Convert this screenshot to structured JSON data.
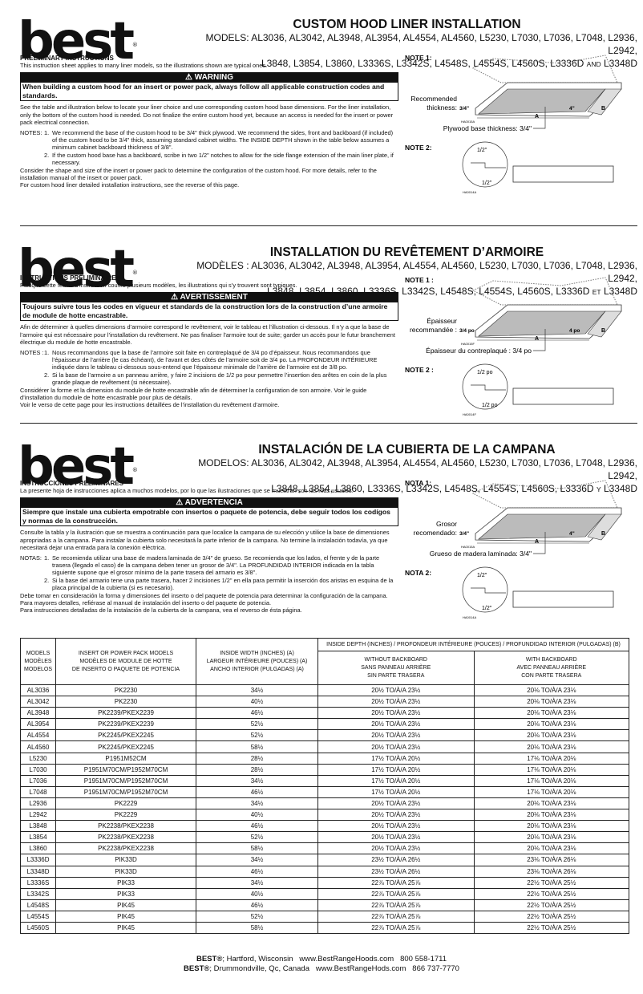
{
  "brand": {
    "logo_text": "best",
    "registered": "®"
  },
  "sections": [
    {
      "lang": "en",
      "title": "CUSTOM HOOD LINER INSTALLATION",
      "models_line1": "MODELS: AL3036, AL3042, AL3948, AL3954, AL4554, AL4560, L5230, L7030, L7036, L7048, L2936, L2942,",
      "models_line2": "L3848, L3854, L3860, L3336S, L3342S, L4548S, L4554S, L4560S, L3336D",
      "conj": "AND",
      "models_last": "L3348D",
      "prelim_heading": "PRELIMINARY INSTRUCTIONS",
      "prelim_text": "This instruction sheet applies to many liner models, so the illustrations shown are typical ones.",
      "warning_label": "WARNING",
      "warning_text": "When building a custom hood for an insert or power pack, always follow all applicable construction codes and standards.",
      "intro": "See the table and illustration below to locate your liner choice and use corresponding custom hood base dimensions. For the liner installation, only the bottom of the custom hood is needed. Do not finalize the entire custom hood yet, because an access is needed for the insert or power pack electrical connection.",
      "notes_label": "NOTES:",
      "notes": [
        "We recommend the base of the custom hood to be 3/4\" thick plywood. We recommend the sides, front and backboard (if included) of the custom hood to be 3/4\" thick, assuming standard cabinet widths. The INSIDE DEPTH shown in the table below assumes a minimum cabinet backboard thickness of 3/8\".",
        "If the custom hood base has a backboard, scribe in two 1/2\" notches to allow for the side flange extension of the main liner plate, if necessary."
      ],
      "closing": [
        "Consider the shape and size of the insert or power pack to determine the configuration of the custom hood. For more details, refer to the installation manual of the insert or power pack.",
        "For custom hood liner detailed installation instructions, see the reverse of this page."
      ],
      "note1_label": "NOTE 1:",
      "note2_label": "NOTE 2:",
      "rec_thickness_1": "Recommended",
      "rec_thickness_2": "thickness:",
      "thickness_value": "3/4\"",
      "dim_a": "A",
      "dim_b": "B",
      "height_value": "4\"",
      "plywood_label": "Plywood base thickness: 3/4\"",
      "fig1_code": "HA0015A",
      "notch_top": "1/2\"",
      "notch_bottom": "1/2\"",
      "fig2_code": "HA0014A"
    },
    {
      "lang": "fr",
      "title": "INSTALLATION DU REVÊTEMENT D’ARMOIRE",
      "models_line1": "MODÈLES : AL3036, AL3042, AL3948, AL3954, AL4554, AL4560, L5230, L7030, L7036, L7048, L2936, L2942,",
      "models_line2": "L3848, L3854, L3860, L3336S, L3342S, L4548S, L4554S, L4560S, L3336D",
      "conj": "ET",
      "models_last": "L3348D",
      "prelim_heading": "INSTRUCTIONS PRÉLIMINAIRES",
      "prelim_text": "Puisque cette feuille d’instruction couvre plusieurs modèles, les illustrations qui s’y trouvent sont typiques.",
      "warning_label": "AVERTISSEMENT",
      "warning_text": "Toujours suivre tous les codes en vigueur et standards de la construction lors de la construction d’une armoire de module de hotte encastrable.",
      "intro": "Afin de déterminer à quelles dimensions d’armoire correspond le revêtement, voir le tableau et l’illustration ci-dessous. Il n’y a que la base de l’armoire qui est nécessaire pour l’installation du revêtement. Ne pas finaliser l’armoire tout de suite; garder un accès pour le futur branchement électrique du module de hotte encastrable.",
      "notes_label": "NOTES :",
      "notes": [
        "Nous recommandons que la base de l’armoire soit faite en contreplaqué de 3/4 po d’épaisseur. Nous recommandons que l’épaisseur de l’arrière (le cas échéant), de l’avant et des côtés de l’armoire soit de 3/4 po. La PROFONDEUR INTÉRIEURE indiquée dans le tableau ci-dessous sous-entend que l’épaisseur minimale de l’arrière de l’armoire est de 3/8 po.",
        "Si la base de l’armoire a un panneau arrière, y faire 2 incisions de 1/2 po pour permettre l’insertion des arêtes en coin de la plus grande plaque de revêtement (si nécessaire)."
      ],
      "closing": [
        "Considérer la forme et la dimension du module de hotte encastrable afin de déterminer la configuration de son armoire. Voir le guide d’installation du module de hotte encastrable pour plus de détails.",
        "Voir le verso de cette page pour les instructions détaillées de l’installation du revêtement d’armoire."
      ],
      "note1_label": "NOTE 1 :",
      "note2_label": "NOTE 2 :",
      "rec_thickness_1": "Épaisseur",
      "rec_thickness_2": "recommandée :",
      "thickness_value": "3/4 po",
      "dim_a": "A",
      "dim_b": "B",
      "height_value": "4 po",
      "plywood_label": "Épaisseur du contreplaqué : 3/4 po",
      "fig1_code": "HA0015F",
      "notch_top": "1/2 po",
      "notch_bottom": "1/2 po",
      "fig2_code": "HA0014F"
    },
    {
      "lang": "es",
      "title": "INSTALACIÓN DE LA CUBIERTA DE LA CAMPANA",
      "models_line1": "MODELOS: AL3036, AL3042, AL3948, AL3954, AL4554, AL4560, L5230, L7030, L7036, L7048, L2936, L2942,",
      "models_line2": "L3848, L3854, L3860, L3336S, L3342S, L4548S, L4554S, L4560S, L3336D",
      "conj": "Y",
      "models_last": "L3348D",
      "prelim_heading": "INSTRUCCIONES PRELIMINARES",
      "prelim_text": "La presente hoja de instrucciones aplica a muchos modelos, por lo que las ilustraciones que se muestran son las más usuales.",
      "warning_label": "ADVERTENCIA",
      "warning_text": "Siempre que instale una cubierta empotrable con insertos o paquete de potencia, debe seguir todos los codígos y normas de la construcción.",
      "intro": "Consulte la tabla y la ilustración que se muestra a continuación para que localice la campana de su elección y utilice la base de dimensiones apropriadas a la campana. Para instalar la cubierta solo necesitará la parte inferior de la campana. No termine la instalación todavía, ya que necesitará dejar una entrada para la conexión eléctrica.",
      "notes_label": "NOTAS:",
      "notes": [
        "Se recomienda utilizar una base de madera laminada de 3/4\" de grueso. Se recomienda que los lados, el frente y de la parte trasera (llegado el caso) de la campana deben tener un grosor de 3/4\". La PROFUNDIDAD INTERIOR indicada en la tabla siguiente supone que el grosor mínimo de la parte trasera del armario es 3/8\".",
        "Si la base del armario tene una parte trasera, hacer 2 incisiones 1/2\" en ella para permitir la inserción dos aristas en esquina de la placa principal de la cubierta (si es necesario)."
      ],
      "closing": [
        "Debe tomar en consideración la forma y dimensiones del inserto o del paquete de potencia para determinar la configuración de la campana. Para mayores detalles, refiérase al manual de instalación del inserto o del paquete de potencia.",
        "Para instrucciones detalladas de la instalación de la cubierta de la campana, vea el reverso de ésta página."
      ],
      "note1_label": "NOTA 1:",
      "note2_label": "NOTA 2:",
      "rec_thickness_1": "Grosor",
      "rec_thickness_2": "recomendado:",
      "thickness_value": "3/4\"",
      "dim_a": "A",
      "dim_b": "B",
      "height_value": "4\"",
      "plywood_label": "Grueso de madera laminada: 3/4\"",
      "fig1_code": "HA0015A",
      "notch_top": "1/2\"",
      "notch_bottom": "1/2\"",
      "fig2_code": "HA0014A"
    }
  ],
  "table": {
    "headers": {
      "models": [
        "Models",
        "Modèles",
        "Modelos"
      ],
      "insert": [
        "Insert or power pack models",
        "Modèles de module de hotte",
        "De inserto o paquete de potencia"
      ],
      "width": [
        "Inside width (inches) (A)",
        "Largeur intérieure (pouces) (A)",
        "Ancho interior (pulgadas) (A)"
      ],
      "depth": "Inside depth (inches) / Profondeur intérieure (pouces) / Profundidad interior (pulgadas) (B)",
      "without": [
        "Without backboard",
        "Sans panneau arrière",
        "Sin parte trasera"
      ],
      "with": [
        "With backboard",
        "Avec panneau arrière",
        "Con parte trasera"
      ]
    },
    "rows": [
      [
        "AL3036",
        "PK2230",
        "34½",
        "20½ TO/À/A 23½",
        "20⅛ TO/À/A 23⅛"
      ],
      [
        "AL3042",
        "PK2230",
        "40½",
        "20½ TO/À/A 23½",
        "20⅛ TO/À/A 23⅛"
      ],
      [
        "AL3948",
        "PK2239/PKEX2239",
        "46½",
        "20½ TO/À/A 23½",
        "20⅛ TO/À/A 23⅛"
      ],
      [
        "AL3954",
        "PK2239/PKEX2239",
        "52½",
        "20½ TO/À/A 23½",
        "20⅛ TO/À/A 23⅛"
      ],
      [
        "AL4554",
        "PK2245/PKEX2245",
        "52½",
        "20½ TO/À/A 23½",
        "20⅛ TO/À/A 23⅛"
      ],
      [
        "AL4560",
        "PK2245/PKEX2245",
        "58½",
        "20½ TO/À/A 23½",
        "20⅛ TO/À/A 23⅛"
      ],
      [
        "L5230",
        "P1951M52CM",
        "28½",
        "17½ TO/À/A 20½",
        "17⅛ TO/À/A 20⅛"
      ],
      [
        "L7030",
        "P1951M70CM/P1952M70CM",
        "28½",
        "17½ TO/À/A 20½",
        "17⅛ TO/À/A 20⅛"
      ],
      [
        "L7036",
        "P1951M70CM/P1952M70CM",
        "34½",
        "17½ TO/À/A 20½",
        "17⅛ TO/À/A 20⅛"
      ],
      [
        "L7048",
        "P1951M70CM/P1952M70CM",
        "46½",
        "17½ TO/À/A 20½",
        "17⅛ TO/À/A 20⅛"
      ],
      [
        "L2936",
        "PK2229",
        "34½",
        "20½ TO/À/A 23½",
        "20⅛ TO/À/A 23⅛"
      ],
      [
        "L2942",
        "PK2229",
        "40½",
        "20½ TO/À/A 23½",
        "20⅛ TO/À/A 23⅛"
      ],
      [
        "L3848",
        "PK2238/PKEX2238",
        "46½",
        "20½ TO/À/A 23½",
        "20⅛ TO/À/A 23⅛"
      ],
      [
        "L3854",
        "PK2238/PKEX2238",
        "52½",
        "20½ TO/À/A 23½",
        "20⅛ TO/À/A 23⅛"
      ],
      [
        "L3860",
        "PK2238/PKEX2238",
        "58½",
        "20½ TO/À/A 23½",
        "20⅛ TO/À/A 23⅛"
      ],
      [
        "L3336D",
        "PIK33D",
        "34½",
        "23½ TO/À/A 26½",
        "23⅛ TO/À/A 26⅛"
      ],
      [
        "L3348D",
        "PIK33D",
        "46½",
        "23½ TO/À/A 26½",
        "23⅛ TO/À/A 26⅛"
      ],
      [
        "L3336S",
        "PIK33",
        "34½",
        "22⅞ TO/À/A 25⅞",
        "22½ TO/À/A 25½"
      ],
      [
        "L3342S",
        "PIK33",
        "40½",
        "22⅞ TO/À/A 25⅞",
        "22½ TO/À/A 25½"
      ],
      [
        "L4548S",
        "PIK45",
        "46½",
        "22⅞ TO/À/A 25⅞",
        "22½ TO/À/A 25½"
      ],
      [
        "L4554S",
        "PIK45",
        "52½",
        "22⅞ TO/À/A 25⅞",
        "22½ TO/À/A 25½"
      ],
      [
        "L4560S",
        "PIK45",
        "58½",
        "22⅞ TO/À/A 25⅞",
        "22½ TO/À/A 25½"
      ]
    ]
  },
  "footer": {
    "lines": [
      {
        "brand": "BEST®",
        "text": "; Hartford, Wisconsin   www.BestRangeHoods.com   800 558-1711"
      },
      {
        "brand": "BEST®",
        "text": "; Drummondville, Qc, Canada   www.BestRangeHods.com   866 737-7770"
      }
    ]
  }
}
